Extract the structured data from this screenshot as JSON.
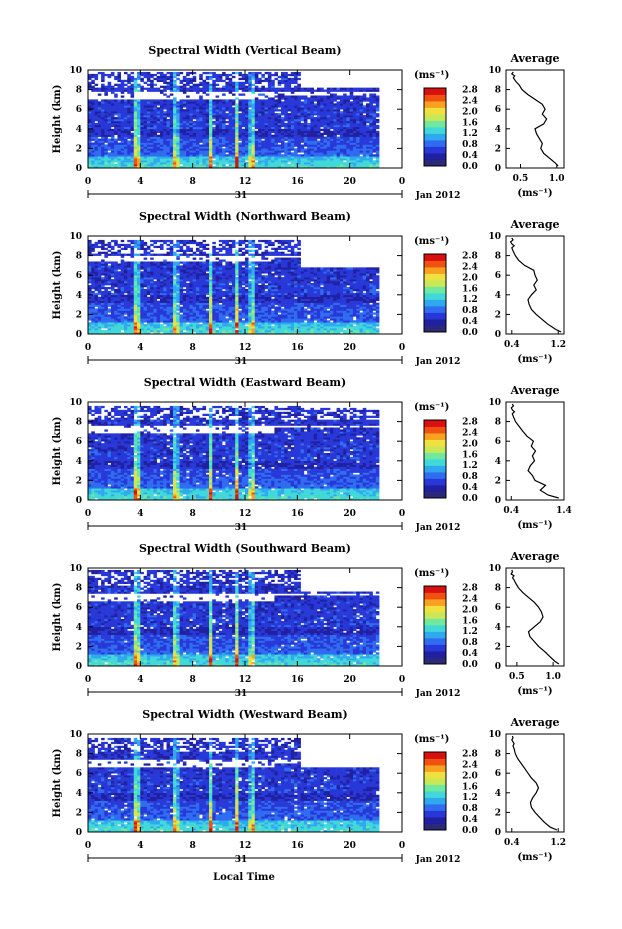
{
  "figure": {
    "xlabel": "Local Time",
    "date_label": "Jan 2012",
    "day_label": "31",
    "colorbar_unit": "(ms⁻¹)",
    "colorbar_ticks": [
      "0.0",
      "0.4",
      "0.8",
      "1.2",
      "1.6",
      "2.0",
      "2.4",
      "2.8"
    ],
    "colorbar_colors": [
      "#2a2a78",
      "#2020a0",
      "#2838d8",
      "#2f6cf0",
      "#30a8f0",
      "#40d8d8",
      "#70e8a0",
      "#c8e858",
      "#f0e040",
      "#f8a020",
      "#f05010",
      "#d81010"
    ],
    "avg_title": "Average",
    "avg_xlabel": "(ms⁻¹)"
  },
  "chart_data": [
    {
      "type": "heatmap",
      "title": "Spectral Width (Vertical Beam)",
      "ylabel": "Height (km)",
      "xlim": [
        0,
        24
      ],
      "x_ticks": [
        "0",
        "4",
        "8",
        "12",
        "16",
        "20",
        "0"
      ],
      "ylim": [
        0,
        10
      ],
      "y_ticks": [
        "0",
        "2",
        "4",
        "6",
        "8",
        "10"
      ],
      "colorbar_range": [
        0.0,
        2.8
      ],
      "z_unit": "ms-1",
      "x_date": "Jan 2012",
      "x_day": "31"
    },
    {
      "type": "heatmap",
      "title": "Spectral Width (Northward Beam)",
      "ylabel": "Height (km)",
      "xlim": [
        0,
        24
      ],
      "x_ticks": [
        "0",
        "4",
        "8",
        "12",
        "16",
        "20",
        "0"
      ],
      "ylim": [
        0,
        10
      ],
      "y_ticks": [
        "0",
        "2",
        "4",
        "6",
        "8",
        "10"
      ],
      "colorbar_range": [
        0.0,
        2.8
      ],
      "z_unit": "ms-1",
      "x_date": "Jan 2012",
      "x_day": "31"
    },
    {
      "type": "heatmap",
      "title": "Spectral Width (Eastward Beam)",
      "ylabel": "Height (km)",
      "xlim": [
        0,
        24
      ],
      "x_ticks": [
        "0",
        "4",
        "8",
        "12",
        "16",
        "20",
        "0"
      ],
      "ylim": [
        0,
        10
      ],
      "y_ticks": [
        "0",
        "2",
        "4",
        "6",
        "8",
        "10"
      ],
      "colorbar_range": [
        0.0,
        2.8
      ],
      "z_unit": "ms-1",
      "x_date": "Jan 2012",
      "x_day": "31"
    },
    {
      "type": "heatmap",
      "title": "Spectral Width (Southward Beam)",
      "ylabel": "Height (km)",
      "xlim": [
        0,
        24
      ],
      "x_ticks": [
        "0",
        "4",
        "8",
        "12",
        "16",
        "20",
        "0"
      ],
      "ylim": [
        0,
        10
      ],
      "y_ticks": [
        "0",
        "2",
        "4",
        "6",
        "8",
        "10"
      ],
      "colorbar_range": [
        0.0,
        2.8
      ],
      "z_unit": "ms-1",
      "x_date": "Jan 2012",
      "x_day": "31"
    },
    {
      "type": "heatmap",
      "title": "Spectral Width (Westward Beam)",
      "ylabel": "Height (km)",
      "xlim": [
        0,
        24
      ],
      "x_ticks": [
        "0",
        "4",
        "8",
        "12",
        "16",
        "20",
        "0"
      ],
      "ylim": [
        0,
        10
      ],
      "y_ticks": [
        "0",
        "2",
        "4",
        "6",
        "8",
        "10"
      ],
      "colorbar_range": [
        0.0,
        2.8
      ],
      "z_unit": "ms-1",
      "x_date": "Jan 2012",
      "x_day": "31"
    },
    {
      "type": "line",
      "title": "Average",
      "xlim": [
        0.3,
        1.1
      ],
      "x_ticks": [
        "0.5",
        "1.0"
      ],
      "ylim": [
        0,
        10
      ],
      "y_ticks": [
        "0",
        "2",
        "4",
        "6",
        "8",
        "10"
      ],
      "x": [
        1.02,
        0.98,
        0.9,
        0.82,
        0.78,
        0.8,
        0.76,
        0.72,
        0.7,
        0.82,
        0.86,
        0.8,
        0.84,
        0.8,
        0.7,
        0.6,
        0.52,
        0.48,
        0.44,
        0.42,
        0.4,
        0.42,
        0.38,
        0.4
      ],
      "y": [
        0.2,
        0.5,
        1.0,
        1.5,
        2.0,
        2.5,
        3.0,
        3.5,
        4.0,
        4.5,
        5.0,
        5.5,
        6.0,
        6.5,
        7.0,
        7.5,
        8.0,
        8.5,
        8.8,
        9.0,
        9.2,
        9.4,
        9.6,
        9.8
      ]
    },
    {
      "type": "line",
      "title": "Average",
      "xlim": [
        0.3,
        1.3
      ],
      "x_ticks": [
        "0.4",
        "1.2"
      ],
      "ylim": [
        0,
        10
      ],
      "y_ticks": [
        "0",
        "2",
        "4",
        "6",
        "8",
        "10"
      ],
      "x": [
        1.25,
        1.15,
        1.02,
        0.92,
        0.82,
        0.74,
        0.7,
        0.68,
        0.74,
        0.82,
        0.78,
        0.84,
        0.8,
        0.78,
        0.62,
        0.52,
        0.46,
        0.42,
        0.4,
        0.44,
        0.4,
        0.38,
        0.42,
        0.4
      ],
      "y": [
        0.2,
        0.5,
        1.0,
        1.5,
        2.0,
        2.5,
        3.0,
        3.5,
        4.0,
        4.5,
        5.0,
        5.5,
        6.0,
        6.5,
        7.0,
        7.5,
        8.0,
        8.5,
        8.8,
        9.0,
        9.2,
        9.4,
        9.6,
        9.8
      ]
    },
    {
      "type": "line",
      "title": "Average",
      "xlim": [
        0.3,
        1.4
      ],
      "x_ticks": [
        "0.4",
        "1.4"
      ],
      "ylim": [
        0,
        10
      ],
      "y_ticks": [
        "0",
        "2",
        "4",
        "6",
        "8",
        "10"
      ],
      "x": [
        1.3,
        1.1,
        0.95,
        1.05,
        0.85,
        0.8,
        0.72,
        0.76,
        0.84,
        0.8,
        0.86,
        0.78,
        0.82,
        0.7,
        0.62,
        0.55,
        0.48,
        0.44,
        0.42,
        0.46,
        0.42,
        0.4,
        0.44,
        0.42
      ],
      "y": [
        0.2,
        0.5,
        1.0,
        1.5,
        2.0,
        2.5,
        3.0,
        3.5,
        4.0,
        4.5,
        5.0,
        5.5,
        6.0,
        6.5,
        7.0,
        7.5,
        8.0,
        8.5,
        8.8,
        9.0,
        9.2,
        9.4,
        9.6,
        9.8
      ]
    },
    {
      "type": "line",
      "title": "Average",
      "xlim": [
        0.35,
        1.15
      ],
      "x_ticks": [
        "0.5",
        "1.0"
      ],
      "ylim": [
        0,
        10
      ],
      "y_ticks": [
        "0",
        "2",
        "4",
        "6",
        "8",
        "10"
      ],
      "x": [
        1.08,
        1.02,
        0.95,
        0.88,
        0.8,
        0.74,
        0.68,
        0.66,
        0.74,
        0.82,
        0.86,
        0.84,
        0.8,
        0.74,
        0.66,
        0.58,
        0.52,
        0.48,
        0.46,
        0.44,
        0.46,
        0.42,
        0.44,
        0.43
      ],
      "y": [
        0.2,
        0.5,
        1.0,
        1.5,
        2.0,
        2.5,
        3.0,
        3.5,
        4.0,
        4.5,
        5.0,
        5.5,
        6.0,
        6.5,
        7.0,
        7.5,
        8.0,
        8.5,
        8.8,
        9.0,
        9.2,
        9.4,
        9.6,
        9.8
      ]
    },
    {
      "type": "line",
      "title": "Average",
      "xlim": [
        0.3,
        1.3
      ],
      "x_ticks": [
        "0.4",
        "1.2"
      ],
      "ylim": [
        0,
        10
      ],
      "y_ticks": [
        "0",
        "2",
        "4",
        "6",
        "8",
        "10"
      ],
      "x": [
        1.18,
        1.06,
        0.96,
        0.88,
        0.8,
        0.74,
        0.72,
        0.76,
        0.82,
        0.86,
        0.82,
        0.74,
        0.68,
        0.62,
        0.56,
        0.5,
        0.46,
        0.44,
        0.42,
        0.44,
        0.42,
        0.4,
        0.42,
        0.41
      ],
      "y": [
        0.2,
        0.5,
        1.0,
        1.5,
        2.0,
        2.5,
        3.0,
        3.5,
        4.0,
        4.5,
        5.0,
        5.5,
        6.0,
        6.5,
        7.0,
        7.5,
        8.0,
        8.5,
        8.8,
        9.0,
        9.2,
        9.4,
        9.6,
        9.8
      ]
    }
  ]
}
